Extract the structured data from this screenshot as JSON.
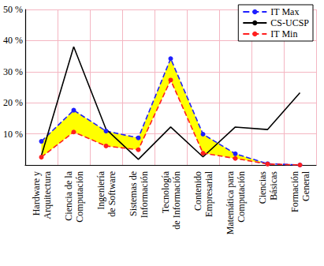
{
  "chart_data": {
    "type": "line",
    "categories": [
      "Hardware y\nArquitectura",
      "Ciencia de la\nComputación",
      "Ingeniería\nde Software",
      "Sistemas de\nInformación",
      "Tecnología\nde Información",
      "Contenido\nEmpresarial",
      "Matemática para\nComputación",
      "Ciencias\nBásicas",
      "Formación\nGeneral"
    ],
    "series": [
      {
        "name": "IT Max",
        "color": "#1f1fff",
        "line_style": "dashed",
        "marker": "circle",
        "values": [
          7.6,
          17.6,
          10.9,
          8.7,
          34.2,
          9.9,
          3.6,
          0.4,
          0
        ]
      },
      {
        "name": "CS-UCSP",
        "color": "#000000",
        "line_style": "solid",
        "marker": "none",
        "values": [
          3,
          38,
          11.5,
          1.8,
          12.2,
          2.6,
          12.2,
          11.4,
          23.2
        ]
      },
      {
        "name": "IT Min",
        "color": "#ff1f1f",
        "line_style": "dashed",
        "marker": "circle",
        "values": [
          2.5,
          10.6,
          6.1,
          4.9,
          27.3,
          3.8,
          2.1,
          0.3,
          0
        ]
      }
    ],
    "ylim": [
      0,
      50
    ],
    "yticks": [
      {
        "value": 10,
        "label": "10 %"
      },
      {
        "value": 20,
        "label": "20 %"
      },
      {
        "value": 30,
        "label": "30 %"
      },
      {
        "value": 40,
        "label": "40 %"
      },
      {
        "value": 50,
        "label": "50 %"
      }
    ],
    "grid": true,
    "legend": "upper right"
  }
}
